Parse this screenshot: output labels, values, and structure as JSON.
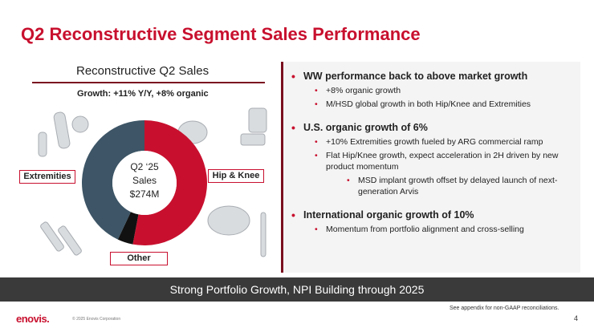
{
  "title": "Q2 Reconstructive Segment Sales Performance",
  "left": {
    "heading": "Reconstructive Q2 Sales",
    "growth": "Growth: +11% Y/Y, +8% organic",
    "center_line1": "Q2 ‘25",
    "center_line2": "Sales",
    "center_line3": "$274M",
    "labels": {
      "extremities": "Extremities",
      "hip_knee": "Hip & Knee",
      "other": "Other"
    }
  },
  "chart_data": {
    "type": "pie",
    "title": "Reconstructive Q2 Sales",
    "slices": [
      {
        "name": "Hip & Knee",
        "value": 53,
        "color": "#c8102e"
      },
      {
        "name": "Other",
        "value": 4,
        "color": "#111111"
      },
      {
        "name": "Extremities",
        "value": 43,
        "color": "#3d5566"
      }
    ],
    "center_label": "Q2 ‘25 Sales $274M"
  },
  "bullets": {
    "s1_title": "WW performance back to above market growth",
    "s1_a": "+8% organic growth",
    "s1_b": "M/HSD global growth in both Hip/Knee and Extremities",
    "s2_title": "U.S. organic growth of 6%",
    "s2_a": "+10% Extremities growth fueled by ARG commercial ramp",
    "s2_b": "Flat Hip/Knee growth, expect acceleration in 2H driven by new product momentum",
    "s2_b_sub": "MSD implant growth offset by delayed launch of next-generation Arvis",
    "s3_title": "International organic growth of 10%",
    "s3_a": "Momentum from portfolio alignment and cross-selling"
  },
  "banner": "Strong Portfolio Growth, NPI Building through 2025",
  "footer": {
    "note": "See appendix for non-GAAP reconciliations.",
    "page": "4",
    "logo": "enovis.",
    "copyright": "© 2025 Enovis Corporation"
  }
}
